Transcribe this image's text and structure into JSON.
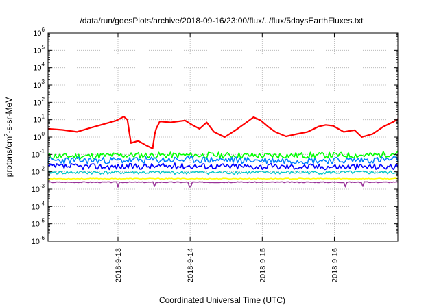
{
  "chart_data": {
    "type": "line",
    "title": "/data/run/goesPlots/archive/2018-09-16/23:00/flux/../flux/5daysEarthFluxes.txt",
    "xlabel": "Coordinated Universal Time (UTC)",
    "ylabel": {
      "pre": "protons/cm",
      "sup": "2",
      "post": "-s-sr-MeV"
    },
    "y_scale": "log",
    "ylim": [
      1e-06,
      1000000.0
    ],
    "xlim": [
      0,
      4.85
    ],
    "grid": true,
    "y_tick_labels": [
      {
        "exp": "-6"
      },
      {
        "exp": "-5"
      },
      {
        "exp": "-4"
      },
      {
        "exp": "-3"
      },
      {
        "exp": "-2"
      },
      {
        "exp": "-1"
      },
      {
        "exp": "0"
      },
      {
        "exp": "1"
      },
      {
        "exp": "2"
      },
      {
        "exp": "3"
      },
      {
        "exp": "4"
      },
      {
        "exp": "5"
      },
      {
        "exp": "6"
      }
    ],
    "y_tick_base": "10",
    "x_ticks": [
      {
        "pos": 0.97,
        "label": "2018-9-13"
      },
      {
        "pos": 1.97,
        "label": "2018-9-14"
      },
      {
        "pos": 2.97,
        "label": "2018-9-15"
      },
      {
        "pos": 3.97,
        "label": "2018-9-16"
      }
    ],
    "series": [
      {
        "color": "#ff0000",
        "width": 2.2,
        "points": [
          [
            0,
            3
          ],
          [
            0.2,
            2.6
          ],
          [
            0.4,
            2
          ],
          [
            0.6,
            3.5
          ],
          [
            0.8,
            6
          ],
          [
            0.95,
            9
          ],
          [
            1.05,
            15
          ],
          [
            1.1,
            10
          ],
          [
            1.15,
            0.45
          ],
          [
            1.25,
            0.6
          ],
          [
            1.35,
            0.35
          ],
          [
            1.45,
            0.22
          ],
          [
            1.48,
            1.5
          ],
          [
            1.5,
            3
          ],
          [
            1.55,
            8
          ],
          [
            1.7,
            7
          ],
          [
            1.9,
            9
          ],
          [
            2.0,
            5
          ],
          [
            2.1,
            3
          ],
          [
            2.2,
            7
          ],
          [
            2.3,
            2
          ],
          [
            2.45,
            1
          ],
          [
            2.6,
            2.5
          ],
          [
            2.75,
            7
          ],
          [
            2.85,
            14
          ],
          [
            2.95,
            9
          ],
          [
            3.05,
            4
          ],
          [
            3.15,
            2
          ],
          [
            3.3,
            1.1
          ],
          [
            3.45,
            1.5
          ],
          [
            3.6,
            2
          ],
          [
            3.75,
            4
          ],
          [
            3.85,
            5
          ],
          [
            3.95,
            4.5
          ],
          [
            4.1,
            2
          ],
          [
            4.25,
            2.5
          ],
          [
            4.35,
            1
          ],
          [
            4.5,
            1.5
          ],
          [
            4.65,
            4
          ],
          [
            4.8,
            8
          ],
          [
            4.85,
            11
          ]
        ]
      },
      {
        "color": "#00ff00",
        "width": 1.6,
        "points": [
          [
            0,
            0.08
          ],
          [
            0.5,
            0.08
          ],
          [
            1.0,
            0.09
          ],
          [
            1.5,
            0.09
          ],
          [
            2.0,
            0.09
          ],
          [
            2.5,
            0.09
          ],
          [
            3.0,
            0.085
          ],
          [
            3.5,
            0.09
          ],
          [
            4.0,
            0.09
          ],
          [
            4.5,
            0.09
          ],
          [
            4.85,
            0.12
          ]
        ],
        "noise": 0.35,
        "seed": 11
      },
      {
        "color": "#0080ff",
        "width": 1.6,
        "points": [
          [
            0,
            0.045
          ],
          [
            1.0,
            0.045
          ],
          [
            2.0,
            0.05
          ],
          [
            3.0,
            0.045
          ],
          [
            4.0,
            0.045
          ],
          [
            4.85,
            0.05
          ]
        ],
        "noise": 0.4,
        "seed": 23
      },
      {
        "color": "#0000ff",
        "width": 1.6,
        "points": [
          [
            0,
            0.02
          ],
          [
            1.0,
            0.02
          ],
          [
            2.0,
            0.022
          ],
          [
            3.0,
            0.02
          ],
          [
            4.0,
            0.02
          ],
          [
            4.85,
            0.02
          ]
        ],
        "noise": 0.35,
        "seed": 37
      },
      {
        "color": "#00c8c8",
        "width": 1.4,
        "points": [
          [
            0,
            0.009
          ],
          [
            2.0,
            0.009
          ],
          [
            4.85,
            0.009
          ]
        ],
        "noise": 0.2,
        "seed": 41
      },
      {
        "color": "#ffff00",
        "width": 1.6,
        "points": [
          [
            0,
            0.004
          ],
          [
            2.0,
            0.004
          ],
          [
            4.85,
            0.004
          ]
        ],
        "noise": 0.05,
        "seed": 53
      },
      {
        "color": "#993399",
        "width": 1.6,
        "points": [
          [
            0,
            0.0025
          ],
          [
            2.0,
            0.0025
          ],
          [
            4.85,
            0.0025
          ]
        ],
        "noise": 0.05,
        "seed": 67,
        "dips": [
          0.97,
          1.47,
          1.97,
          4.12,
          4.37
        ]
      }
    ]
  }
}
